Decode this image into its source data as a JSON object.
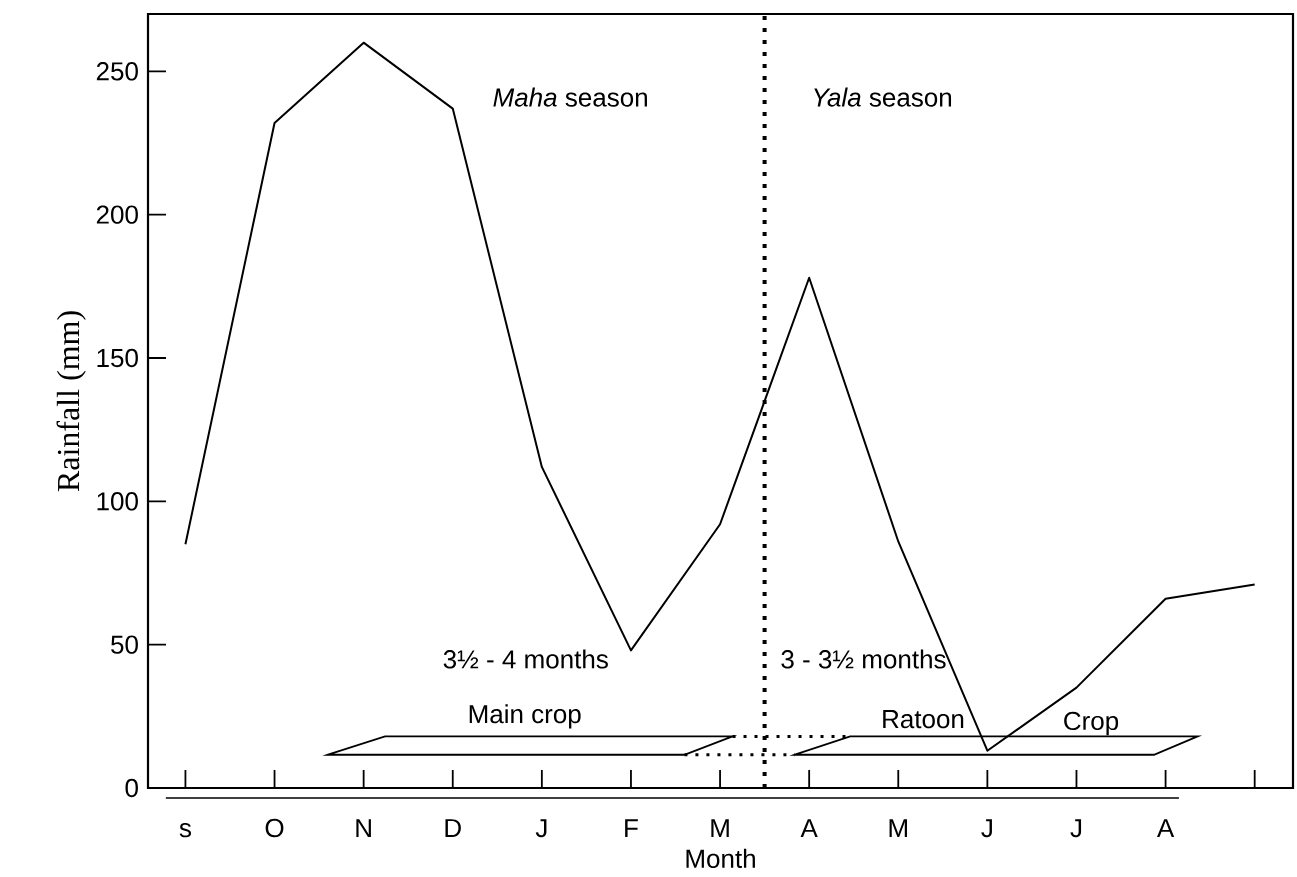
{
  "chart_data": {
    "type": "line",
    "xlabel": "Month",
    "ylabel": "Rainfall (mm)",
    "categories": [
      "s",
      "O",
      "N",
      "D",
      "J",
      "F",
      "M",
      "A",
      "M",
      "J",
      "J",
      "A",
      null
    ],
    "values": [
      85,
      232,
      260,
      237,
      112,
      48,
      92,
      178,
      86,
      13,
      35,
      66,
      71
    ],
    "color": "#000000",
    "marker": "none",
    "line_style": "solid",
    "ylim": [
      0,
      270
    ],
    "yticks": [
      0,
      50,
      100,
      150,
      200,
      250
    ],
    "annotations": [
      "*Maha* season",
      "*Yala* season",
      "3½ - 4 months",
      "Main crop",
      "3 - 3½ months",
      "Ratoon",
      "Crop"
    ]
  }
}
